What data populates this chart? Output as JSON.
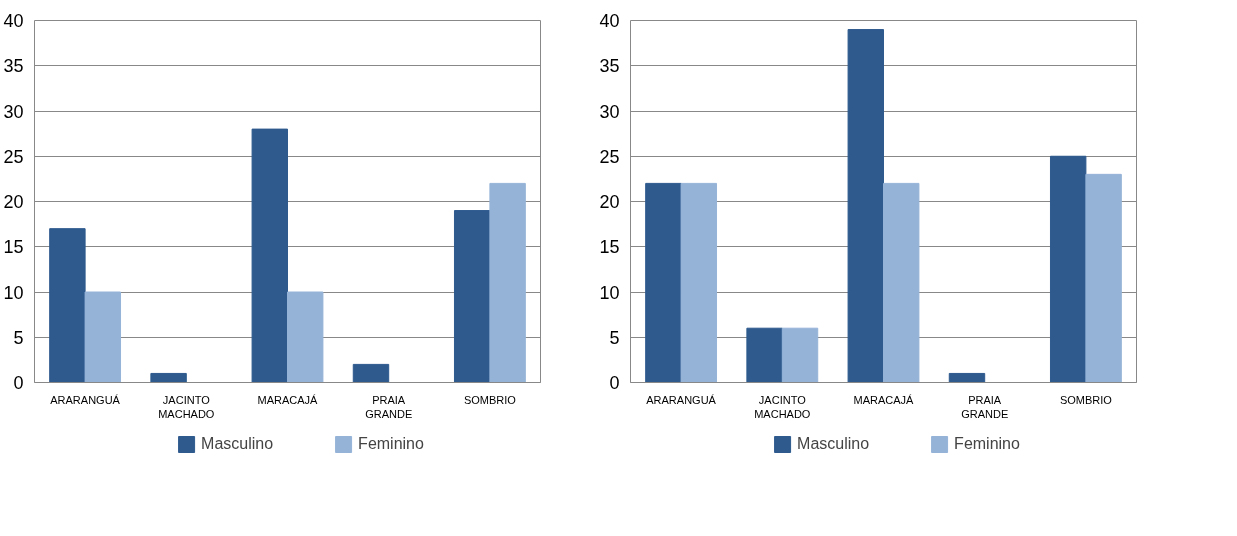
{
  "chart_data": [
    {
      "type": "bar",
      "categories": [
        "ARARANGUÁ",
        "JACINTO MACHADO",
        "MARACAJÁ",
        "PRAIA GRANDE",
        "SOMBRIO"
      ],
      "series": [
        {
          "name": "Masculino",
          "color": "#2e5a8e",
          "values": [
            17,
            1,
            28,
            2,
            19
          ]
        },
        {
          "name": "Feminino",
          "color": "#95b3d7",
          "values": [
            10,
            0,
            10,
            0,
            22
          ]
        }
      ],
      "ylim": [
        0,
        40
      ],
      "yticks": [
        0,
        5,
        10,
        15,
        20,
        25,
        30,
        35,
        40
      ],
      "grid": "y",
      "legend": "bottom"
    },
    {
      "type": "bar",
      "categories": [
        "ARARANGUÁ",
        "JACINTO MACHADO",
        "MARACAJÁ",
        "PRAIA GRANDE",
        "SOMBRIO"
      ],
      "series": [
        {
          "name": "Masculino",
          "color": "#2e5a8e",
          "values": [
            22,
            6,
            39,
            1,
            25
          ]
        },
        {
          "name": "Feminino",
          "color": "#95b3d7",
          "values": [
            22,
            6,
            22,
            0,
            23
          ]
        }
      ],
      "ylim": [
        0,
        40
      ],
      "yticks": [
        0,
        5,
        10,
        15,
        20,
        25,
        30,
        35,
        40
      ],
      "grid": "y",
      "legend": "bottom"
    }
  ]
}
